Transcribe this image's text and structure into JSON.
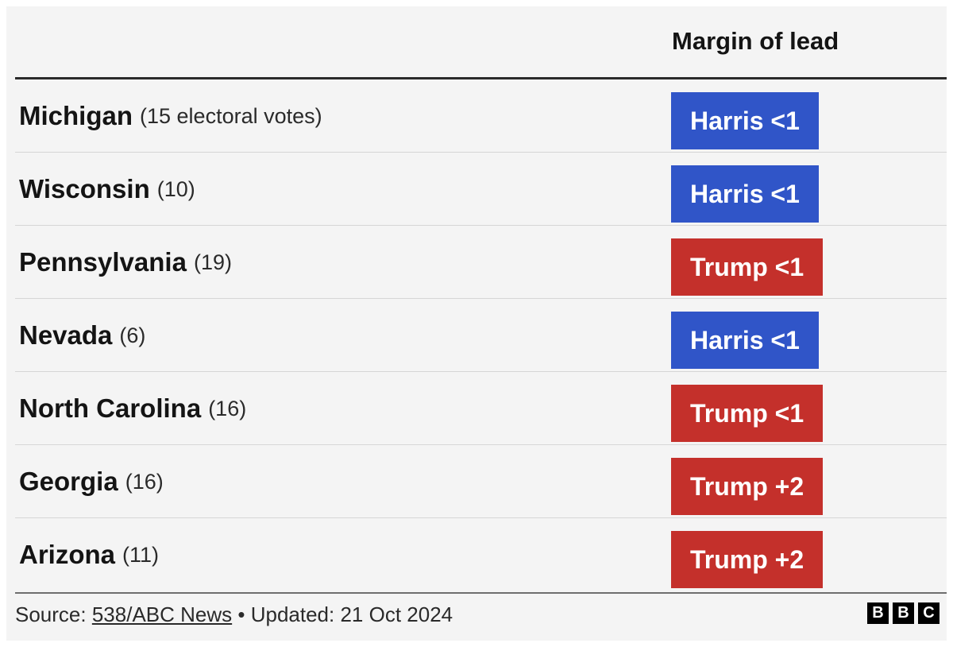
{
  "chart_data": {
    "type": "table",
    "column_header": "Margin of lead",
    "rows": [
      {
        "state": "Michigan",
        "votes": "(15 electoral votes)",
        "leader": "Harris",
        "margin": "<1",
        "label": "Harris <1",
        "color": "#3055c8"
      },
      {
        "state": "Wisconsin",
        "votes": "(10)",
        "leader": "Harris",
        "margin": "<1",
        "label": "Harris <1",
        "color": "#3055c8"
      },
      {
        "state": "Pennsylvania",
        "votes": "(19)",
        "leader": "Trump",
        "margin": "<1",
        "label": "Trump <1",
        "color": "#c4302b"
      },
      {
        "state": "Nevada",
        "votes": "(6)",
        "leader": "Harris",
        "margin": "<1",
        "label": "Harris <1",
        "color": "#3055c8"
      },
      {
        "state": "North Carolina",
        "votes": "(16)",
        "leader": "Trump",
        "margin": "<1",
        "label": "Trump <1",
        "color": "#c4302b"
      },
      {
        "state": "Georgia",
        "votes": "(16)",
        "leader": "Trump",
        "margin": "+2",
        "label": "Trump +2",
        "color": "#c4302b"
      },
      {
        "state": "Arizona",
        "votes": "(11)",
        "leader": "Trump",
        "margin": "+2",
        "label": "Trump +2",
        "color": "#c4302b"
      }
    ]
  },
  "footer": {
    "source_prefix": "Source:",
    "source_link": "538/ABC News",
    "updated": "• Updated: 21 Oct 2024"
  },
  "logo": {
    "letters": [
      "B",
      "B",
      "C"
    ]
  },
  "colors": {
    "harris": "#3055c8",
    "trump": "#c4302b",
    "background": "#f4f4f4"
  }
}
